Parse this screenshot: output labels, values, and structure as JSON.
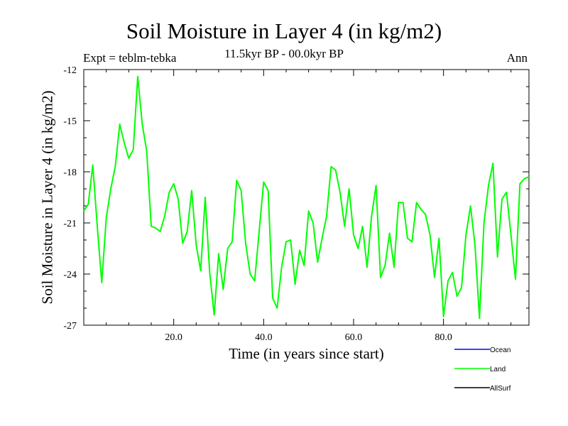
{
  "chart_data": {
    "type": "line",
    "title": "Soil Moisture in Layer 4 (in kg/m2)",
    "subtitle": "11.5kyr BP - 00.0kyr BP",
    "left_label": "Expt = teblm-tebka",
    "right_label": "Ann",
    "xlabel": "Time (in years since start)",
    "ylabel": "Soil Moisture in Layer 4 (in kg/m2)",
    "xlim": [
      0,
      99
    ],
    "ylim": [
      -27,
      -12
    ],
    "x_ticks": [
      20,
      40,
      60,
      80
    ],
    "x_tick_labels": [
      "20.0",
      "40.0",
      "60.0",
      "80.0"
    ],
    "y_ticks": [
      -12,
      -15,
      -18,
      -21,
      -24,
      -27
    ],
    "y_tick_labels": [
      "-12",
      "-15",
      "-18",
      "-21",
      "-24",
      "-27"
    ],
    "legend": [
      {
        "name": "Ocean",
        "color": "#0000ff"
      },
      {
        "name": "Land",
        "color": "#00ff00"
      },
      {
        "name": "AllSurf",
        "color": "#000000"
      }
    ],
    "series": [
      {
        "name": "Land",
        "color": "#00ff00",
        "x": [
          0,
          1,
          2,
          3,
          4,
          5,
          6,
          7,
          8,
          9,
          10,
          11,
          12,
          13,
          14,
          15,
          16,
          17,
          18,
          19,
          20,
          21,
          22,
          23,
          24,
          25,
          26,
          27,
          28,
          29,
          30,
          31,
          32,
          33,
          34,
          35,
          36,
          37,
          38,
          39,
          40,
          41,
          42,
          43,
          44,
          45,
          46,
          47,
          48,
          49,
          50,
          51,
          52,
          53,
          54,
          55,
          56,
          57,
          58,
          59,
          60,
          61,
          62,
          63,
          64,
          65,
          66,
          67,
          68,
          69,
          70,
          71,
          72,
          73,
          74,
          75,
          76,
          77,
          78,
          79,
          80,
          81,
          82,
          83,
          84,
          85,
          86,
          87,
          88,
          89,
          90,
          91,
          92,
          93,
          94,
          95,
          96,
          97,
          98,
          99
        ],
        "values": [
          -20.3,
          -19.9,
          -17.6,
          -21.2,
          -24.5,
          -20.7,
          -19.0,
          -17.7,
          -15.2,
          -16.3,
          -17.2,
          -16.7,
          -12.4,
          -15.2,
          -16.8,
          -21.2,
          -21.3,
          -21.5,
          -20.6,
          -19.2,
          -18.7,
          -19.6,
          -22.2,
          -21.5,
          -19.1,
          -22.3,
          -23.8,
          -19.5,
          -23.9,
          -26.4,
          -22.8,
          -24.9,
          -22.5,
          -22.1,
          -18.5,
          -19.1,
          -22.2,
          -24.0,
          -24.4,
          -21.5,
          -18.6,
          -19.1,
          -25.4,
          -26.0,
          -23.6,
          -22.1,
          -22.0,
          -24.6,
          -22.6,
          -23.5,
          -20.3,
          -21.0,
          -23.3,
          -21.9,
          -20.6,
          -17.7,
          -17.9,
          -19.2,
          -21.2,
          -19.0,
          -21.7,
          -22.5,
          -21.2,
          -23.6,
          -20.6,
          -18.8,
          -24.2,
          -23.5,
          -21.6,
          -23.6,
          -19.8,
          -19.8,
          -21.9,
          -22.1,
          -19.8,
          -20.2,
          -20.5,
          -21.7,
          -24.2,
          -21.9,
          -26.5,
          -24.4,
          -23.9,
          -25.3,
          -24.8,
          -21.7,
          -20.0,
          -22.3,
          -26.6,
          -21.0,
          -18.8,
          -17.5,
          -23.0,
          -19.6,
          -19.2,
          -21.7,
          -24.3,
          -18.7,
          -18.4,
          -18.3
        ]
      }
    ]
  }
}
